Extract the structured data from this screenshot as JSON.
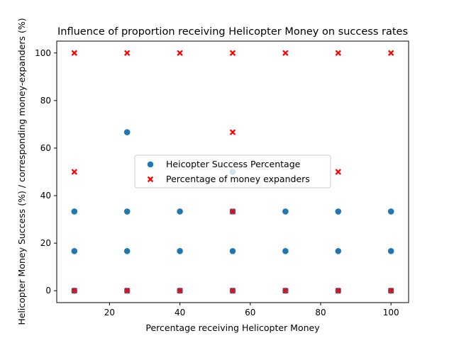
{
  "chart_data": {
    "type": "scatter",
    "title": "Influence of proportion receiving Helicopter Money on success rates",
    "xlabel": "Percentage receiving Helicopter Money",
    "ylabel": "Helicopter Money Success (%) / corresponding money-expanders (%)",
    "xlim": [
      5,
      105
    ],
    "ylim": [
      -5,
      105
    ],
    "x_ticks": [
      20,
      40,
      60,
      80,
      100
    ],
    "y_ticks": [
      0,
      20,
      40,
      60,
      80,
      100
    ],
    "grid": false,
    "legend_position": "center",
    "series": [
      {
        "name": "Heicopter Success Percentage",
        "color": "#1f77b4",
        "marker": "circle",
        "x": [
          10,
          10,
          10,
          25,
          25,
          25,
          25,
          40,
          40,
          40,
          55,
          55,
          55,
          55,
          70,
          70,
          70,
          85,
          85,
          85,
          100,
          100,
          100
        ],
        "y": [
          0,
          16.67,
          33.33,
          0,
          16.67,
          33.33,
          66.67,
          0,
          16.67,
          33.33,
          0,
          16.67,
          33.33,
          50,
          0,
          16.67,
          33.33,
          0,
          16.67,
          33.33,
          0,
          16.67,
          33.33
        ]
      },
      {
        "name": "Percentage of money expanders",
        "color": "#ff0000",
        "marker": "x",
        "x": [
          10,
          10,
          10,
          25,
          25,
          40,
          40,
          55,
          55,
          55,
          55,
          70,
          70,
          85,
          85,
          85,
          100,
          100
        ],
        "y": [
          0,
          50,
          100,
          0,
          100,
          0,
          100,
          0,
          33.33,
          66.67,
          100,
          0,
          100,
          0,
          50,
          100,
          0,
          100
        ]
      }
    ]
  }
}
